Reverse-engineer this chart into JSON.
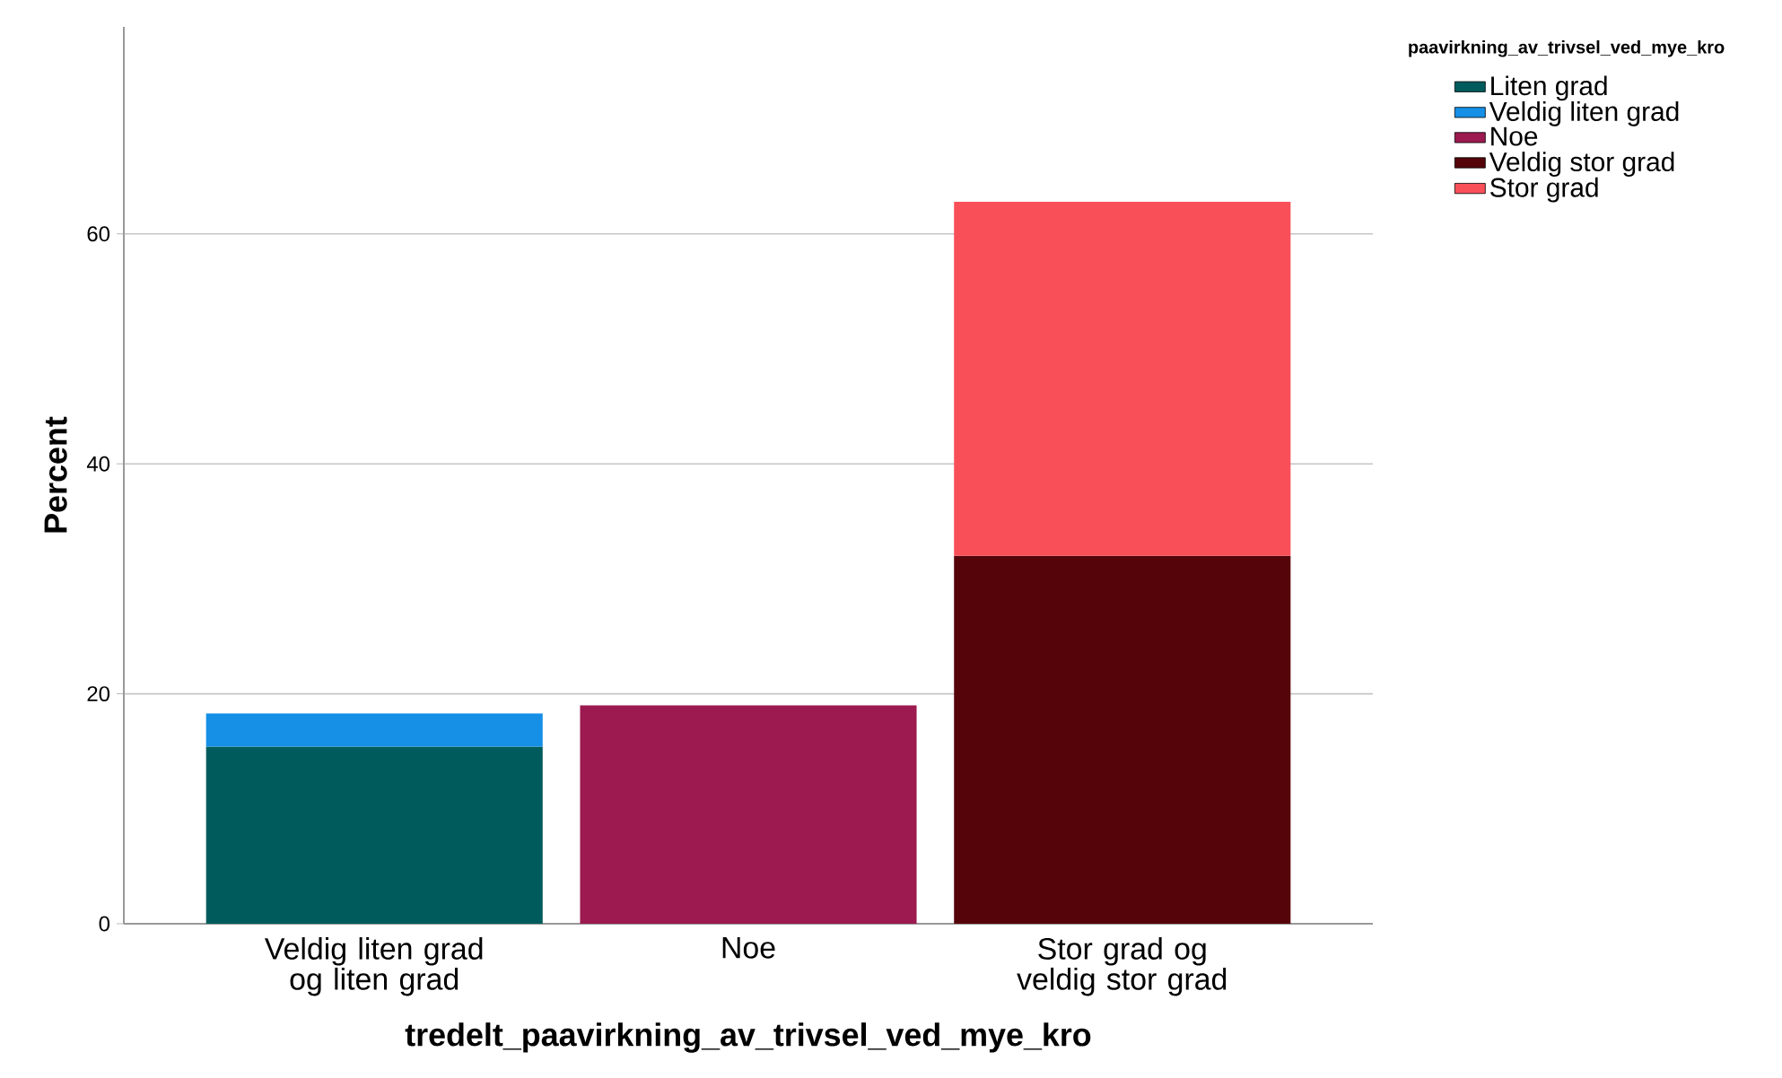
{
  "chart_data": {
    "type": "bar",
    "stacked": true,
    "xlabel": "tredelt_paavirkning_av_trivsel_ved_mye_kro",
    "ylabel": "Percent",
    "legend_title": "paavirkning_av_trivsel_ved_mye_kro",
    "categories": [
      "Veldig liten grad og liten grad",
      "Noe",
      "Stor grad og veldig stor grad"
    ],
    "series": [
      {
        "name": "Liten grad",
        "color": "#005c5c",
        "values": [
          15.4,
          null,
          null
        ]
      },
      {
        "name": "Veldig liten grad",
        "color": "#1590e6",
        "values": [
          2.9,
          null,
          null
        ]
      },
      {
        "name": "Noe",
        "color": "#9c1a50",
        "values": [
          null,
          19.0,
          null
        ]
      },
      {
        "name": "Veldig stor grad",
        "color": "#55050a",
        "values": [
          null,
          null,
          32.0
        ]
      },
      {
        "name": "Stor grad",
        "color": "#f94f58",
        "values": [
          null,
          null,
          30.8
        ]
      }
    ],
    "ylim": [
      0,
      78
    ],
    "yticks": [
      0,
      20,
      40,
      60
    ],
    "grid": "y",
    "legend": "top right"
  }
}
